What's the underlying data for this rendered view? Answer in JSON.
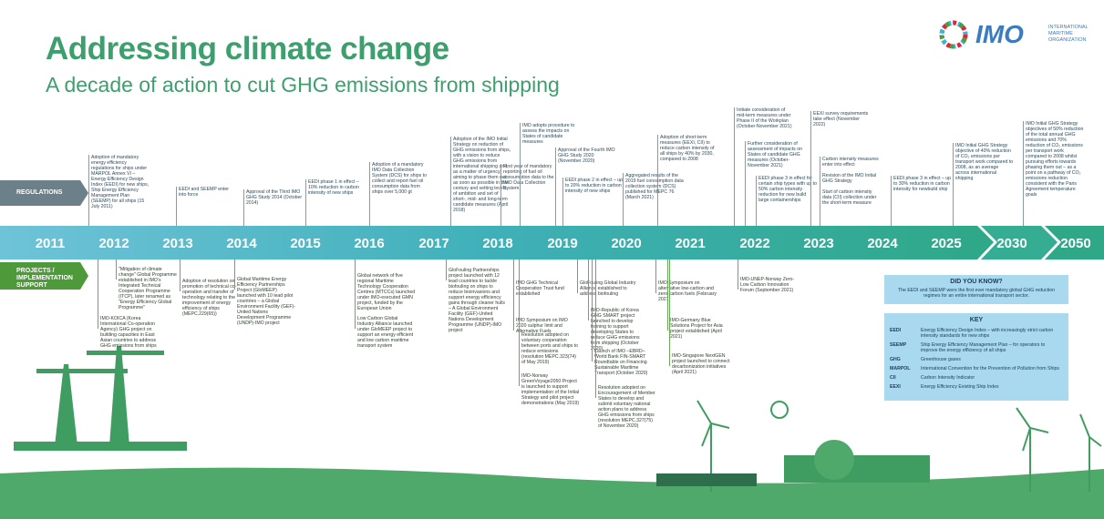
{
  "header": {
    "title": "Addressing climate change",
    "subtitle": "A decade of action to cut GHG emissions from shipping",
    "logo": {
      "name": "IMO",
      "org": "INTERNATIONAL MARITIME ORGANIZATION"
    }
  },
  "labels": {
    "regulations": "REGULATIONS",
    "projects": "PROJECTS / IMPLEMENTATION SUPPORT"
  },
  "timeline": {
    "years": [
      "2011",
      "2012",
      "2013",
      "2014",
      "2015",
      "2016",
      "2017",
      "2018",
      "2019",
      "2020",
      "2021",
      "2022",
      "2023",
      "2024",
      "2025",
      "2030",
      "2050"
    ]
  },
  "regulations": [
    "Adoption of mandatory energy efficiency regulations for ships under MARPOL Annex VI – Energy Efficiency Design Index (EEDI) for new ships, Ship Energy Efficiency Management Plan (SEEMP) for all ships (15 July 2011)",
    "EEDI and SEEMP enter into force",
    "Approval of the Third IMO GHG Study 2014 (October 2014)",
    "EEDI phase 1 in effect – 10% reduction in carbon intensity of new ships",
    "Adoption of a mandatory IMO Data Collection System (DCS) for ships to collect and report fuel oil consumption data from ships over 5,000 gt",
    "Adoption of the IMO Initial Strategy on reduction of GHG emissions from ships, with a vision to reduce GHG emissions from international shipping and, as a matter of urgency, aiming to phase them out as soon as possible in this century and setting levels of ambition and set of short-, mid- and long-term candidate measures (April 2018)",
    "First year of mandatory reporting of fuel oil consumption data to the IMO Data Collection System",
    "IMO adopts procedure to assess the impacts on States of candidate measures",
    "Approval of the Fourth IMO GHG Study 2020 (November 2020)",
    "EEDI phase 2 in effect – up to 20% reduction in carbon intensity of new ships",
    "Aggregated results of the 2019 fuel consumption data collection system (DCS) published for MEPC 76 (March 2021)",
    "Adoption of short-term measures (EEXI, CII) to reduce carbon intensity of all ships by 40% by 2030, compared to 2008",
    "Initiate consideration of mid-term measures under Phase II of the Workplan (October-November 2021)",
    "Further consideration of assessment of impacts on States of candidate GHG measures (October-November 2021)",
    "EEDI phase 3 in effect for certain ship types with up to 50% carbon intensity reduction for new build large containerships",
    "EEXI survey requirements take effect (November 2022)",
    "Carbon intensity measures enter into effect",
    "Revision of the IMO Initial GHG Strategy",
    "Start of carbon intensity data (CII) collection under the short-term measure",
    "EEDI phase 3 in effect – up to 30% reduction in carbon intensity for newbuild ship",
    "IMO Initial GHG Strategy objective of 40% reduction of CO₂ emissions per transport work compared to 2008, as an average across international shipping",
    "IMO Initial GHG Strategy objectives of 50% reduction of the total annual GHG emissions and 70% reduction of CO₂ emissions per transport work compared to 2008 whilst pursuing efforts towards phasing them out – as a point on a pathway of CO₂ emissions reduction consistent with the Paris Agreement temperature goals"
  ],
  "projects": [
    "\"Mitigation of climate change\" Global Programme established in IMO's Integrated Technical Cooperation Programme (ITCP), later renamed as \"Energy Efficiency Global Programme\"",
    "IMO-KOICA (Korea International Co-operation Agency) GHG project on building capacities in East Asian countries to address GHG emissions from ships",
    "Adoption of resolution on promotion of technical co-operation and transfer of technology relating to the improvement of energy efficiency of ships (MEPC.229(65))",
    "Global Maritime Energy Efficiency Partnerships Project (GloMEEP) launched with 10 lead pilot countries – a Global Environment Facility (GEF)-United Nations Development Programme (UNDP)-IMO project",
    "Global network of five regional Maritime Technology Cooperation Centres (MTCCs) launched under IMO-executed GMN project, funded by the European Union",
    "Low Carbon Global Industry Alliance launched under GloMEEP project to support an energy efficient and low carbon maritime transport system",
    "GloFouling Partnerships project launched with 12 lead countries to tackle biofouling on ships to reduce bioinvasions and support energy efficiency gains through cleaner hulls – A Global Environment Facility (GEF)-United Nations Development Programme (UNDP)-IMO project",
    "IMO GHG Technical Cooperation Trust fund established",
    "IMO Symposium on IMO 2020 sulphur limit and Alternative Fuels",
    "Resolution adopted on voluntary cooperation between ports and ships to reduce emissions (resolution MEPC.323(74) of May 2019)",
    "IMO-Norway GreenVoyage2050 Project is launched to support implementation of the Initial Strategy and pilot project demonstrations (May 2019)",
    "GloFouling Global Industry Alliance established to address biofouling",
    "IMO-Republic of Korea GHG SMART project launched to develop training to support developing States to reduce GHG emissions from shipping (October 2020)",
    "Launch of IMO –EBRD– World Bank FIN-SMART Roundtable on Financing Sustainable Maritime Transport (October 2020)",
    "Resolution adopted on Encouragement of Member States to develop and submit voluntary national action plans to address GHG emissions from ships (resolution MEPC.327(75) of November 2020)",
    "IMO Symposium on alternative low-carbon and zero-carbon fuels (February 2021)",
    "IMO-Germany Blue Solutions Project for Asia project established (April 2021)",
    "IMO-Singapore NextGEN project launched to connect decarbonization initiatives (April 2021)",
    "IMO-UNEP-Norway Zero-Low Carbon Innovation Forum (September 2021)"
  ],
  "did_you_know": {
    "title": "DID YOU KNOW?",
    "text": "The EEDI and SEEMP were the first ever mandatory global GHG reduction regimes for an entire international transport sector."
  },
  "key": {
    "title": "KEY",
    "rows": [
      [
        "EEDI",
        "Energy Efficiency Design Index – with increasingly strict carbon intensity standards for new ships"
      ],
      [
        "SEEMP",
        "Ship Energy Efficiency Management Plan – for operators to improve the energy efficiency of all ships"
      ],
      [
        "GHG",
        "Greenhouse gases"
      ],
      [
        "MARPOL",
        "International Convention for the Prevention of Pollution from Ships"
      ],
      [
        "CII",
        "Carbon Intensity Indicator"
      ],
      [
        "EEXI",
        "Energy Efficiency Existing Ship Index"
      ]
    ]
  }
}
